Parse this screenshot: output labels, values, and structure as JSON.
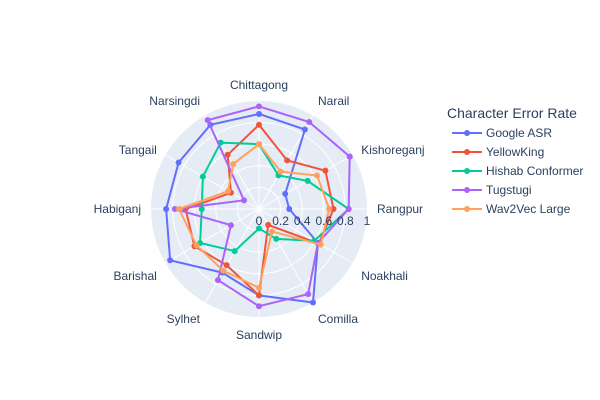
{
  "chart_data": {
    "type": "radar",
    "legend_title": "Character Error Rate",
    "legend_position": "right",
    "categories": [
      "Rangpur",
      "Kishoreganj",
      "Narail",
      "Chittagong",
      "Narsingdi",
      "Tangail",
      "Habiganj",
      "Barishal",
      "Sylhet",
      "Sandwip",
      "Comilla",
      "Noakhali"
    ],
    "radial_ticks": [
      "0",
      "0.2",
      "0.4",
      "0.6",
      "0.8",
      "1"
    ],
    "radial_tick_values": [
      0,
      0.2,
      0.4,
      0.6,
      0.8,
      1
    ],
    "radial_range": [
      0,
      1
    ],
    "grid": true,
    "series": [
      {
        "name": "Google ASR",
        "color": "#636efa",
        "values": [
          0.28,
          0.28,
          0.85,
          0.88,
          0.9,
          0.86,
          0.86,
          0.95,
          0.68,
          0.8,
          1.0,
          0.63
        ]
      },
      {
        "name": "YellowKing",
        "color": "#EF553B",
        "values": [
          0.69,
          0.71,
          0.52,
          0.78,
          0.58,
          0.3,
          0.68,
          0.69,
          0.6,
          0.8,
          0.17,
          0.64
        ]
      },
      {
        "name": "Hishab Conformer",
        "color": "#00cc96",
        "values": [
          0.83,
          0.52,
          0.36,
          0.6,
          0.71,
          0.6,
          0.53,
          0.63,
          0.45,
          0.18,
          0.32,
          0.59
        ]
      },
      {
        "name": "Tugstugi",
        "color": "#ab63fa",
        "values": [
          0.83,
          0.97,
          0.93,
          0.95,
          0.95,
          0.16,
          0.78,
          0.3,
          0.76,
          0.9,
          0.91,
          0.63
        ]
      },
      {
        "name": "Wav2Vec Large",
        "color": "#FFA15A",
        "values": [
          0.65,
          0.62,
          0.4,
          0.6,
          0.48,
          0.33,
          0.74,
          0.67,
          0.66,
          0.73,
          0.24,
          0.66
        ]
      }
    ]
  }
}
